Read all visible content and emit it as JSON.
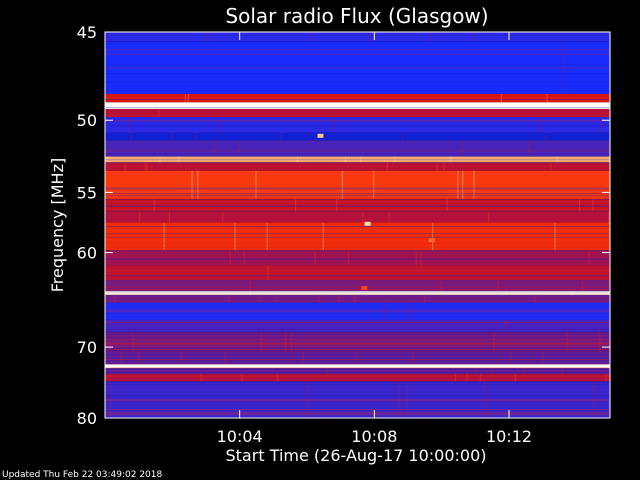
{
  "chart_data": {
    "type": "heatmap",
    "title": "Solar radio Flux (Glasgow)",
    "xlabel": "Start Time (26-Aug-17 10:00:00)",
    "ylabel": "Frequency [MHz]",
    "x_unit": "minutes after 10:00:00",
    "xlim": [
      0,
      15
    ],
    "ylim": [
      45,
      80
    ],
    "y_scale": "reciprocal",
    "x_ticks": [
      {
        "value": 4,
        "label": "10:04"
      },
      {
        "value": 8,
        "label": "10:08"
      },
      {
        "value": 12,
        "label": "10:12"
      }
    ],
    "y_ticks": [
      {
        "value": 45,
        "label": "45"
      },
      {
        "value": 50,
        "label": "50"
      },
      {
        "value": 55,
        "label": "55"
      },
      {
        "value": 60,
        "label": "60"
      },
      {
        "value": 70,
        "label": "70"
      },
      {
        "value": 80,
        "label": "80"
      }
    ],
    "colormap": [
      "#00006e",
      "#1a2dff",
      "#5a1fa0",
      "#b01040",
      "#e01808",
      "#ff4410",
      "#ffd090",
      "#ffffff"
    ],
    "frequency_bands": [
      {
        "f_start": 45.0,
        "f_end": 45.5,
        "intensity": 0.18
      },
      {
        "f_start": 45.5,
        "f_end": 48.4,
        "intensity": 0.14
      },
      {
        "f_start": 48.4,
        "f_end": 48.9,
        "intensity": 0.55
      },
      {
        "f_start": 48.9,
        "f_end": 49.3,
        "intensity": 1.0
      },
      {
        "f_start": 49.3,
        "f_end": 49.8,
        "intensity": 0.45
      },
      {
        "f_start": 49.8,
        "f_end": 50.8,
        "intensity": 0.18
      },
      {
        "f_start": 50.8,
        "f_end": 51.3,
        "intensity": 0.1
      },
      {
        "f_start": 51.3,
        "f_end": 52.4,
        "intensity": 0.25
      },
      {
        "f_start": 52.4,
        "f_end": 52.8,
        "intensity": 0.82
      },
      {
        "f_start": 52.8,
        "f_end": 53.4,
        "intensity": 0.45
      },
      {
        "f_start": 53.4,
        "f_end": 55.5,
        "intensity": 0.68
      },
      {
        "f_start": 55.5,
        "f_end": 56.5,
        "intensity": 0.5
      },
      {
        "f_start": 56.5,
        "f_end": 57.4,
        "intensity": 0.44
      },
      {
        "f_start": 57.4,
        "f_end": 59.8,
        "intensity": 0.64
      },
      {
        "f_start": 59.8,
        "f_end": 61.2,
        "intensity": 0.4
      },
      {
        "f_start": 61.2,
        "f_end": 62.6,
        "intensity": 0.46
      },
      {
        "f_start": 62.6,
        "f_end": 63.7,
        "intensity": 0.34
      },
      {
        "f_start": 63.7,
        "f_end": 64.1,
        "intensity": 0.95
      },
      {
        "f_start": 64.1,
        "f_end": 64.9,
        "intensity": 0.32
      },
      {
        "f_start": 64.9,
        "f_end": 66.8,
        "intensity": 0.16
      },
      {
        "f_start": 66.8,
        "f_end": 68.2,
        "intensity": 0.24
      },
      {
        "f_start": 68.2,
        "f_end": 70.6,
        "intensity": 0.34
      },
      {
        "f_start": 70.6,
        "f_end": 72.2,
        "intensity": 0.3
      },
      {
        "f_start": 72.2,
        "f_end": 72.7,
        "intensity": 1.0
      },
      {
        "f_start": 72.7,
        "f_end": 73.5,
        "intensity": 0.3
      },
      {
        "f_start": 73.5,
        "f_end": 74.5,
        "intensity": 0.44
      },
      {
        "f_start": 74.5,
        "f_end": 80.0,
        "intensity": 0.22
      }
    ],
    "bursts": [
      {
        "time": 6.4,
        "freq": 51.0,
        "intensity": 0.85
      },
      {
        "time": 7.8,
        "freq": 57.5,
        "intensity": 0.9
      },
      {
        "time": 9.7,
        "freq": 58.9,
        "intensity": 0.75
      },
      {
        "time": 7.7,
        "freq": 63.4,
        "intensity": 0.7
      }
    ]
  },
  "footer": {
    "updated": "Updated Thu Feb 22 03:49:02 2018"
  },
  "colors": {
    "background": "#000000",
    "axis": "#ffffff"
  }
}
